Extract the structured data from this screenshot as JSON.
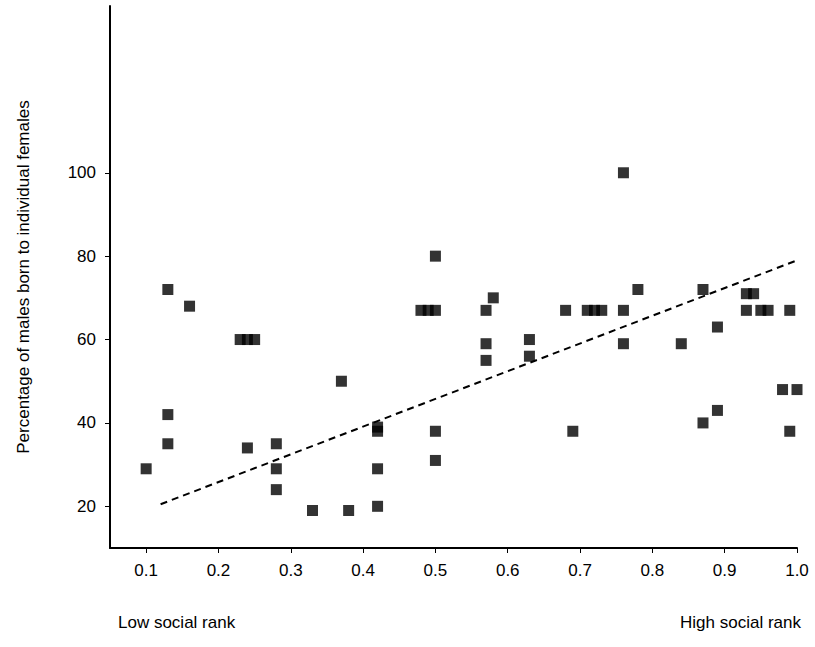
{
  "chart_data": {
    "type": "scatter",
    "y_label": "Percentage of males born to individual females",
    "annotations": [
      "Low social rank",
      "High social rank"
    ],
    "xlim": [
      0.05,
      1.0
    ],
    "xticks": [
      0.1,
      0.2,
      0.3,
      0.4,
      0.5,
      0.6,
      0.7,
      0.8,
      0.9,
      {
        "value": 1.0,
        "label": "1.0"
      }
    ],
    "ylim": [
      10,
      140
    ],
    "yticks": [
      20,
      40,
      60,
      80,
      100
    ],
    "grid": false,
    "series": [
      {
        "type": "scatter",
        "color": "#000000",
        "marker": "square",
        "x": [
          0.1,
          0.13,
          0.13,
          0.13,
          0.16,
          0.23,
          0.24,
          0.25,
          0.24,
          0.28,
          0.28,
          0.28,
          0.33,
          0.37,
          0.38,
          0.42,
          0.42,
          0.42,
          0.42,
          0.48,
          0.49,
          0.5,
          0.5,
          0.5,
          0.5,
          0.57,
          0.58,
          0.57,
          0.57,
          0.63,
          0.63,
          0.68,
          0.69,
          0.71,
          0.72,
          0.73,
          0.76,
          0.76,
          0.76,
          0.78,
          0.84,
          0.87,
          0.89,
          0.89,
          0.87,
          0.93,
          0.94,
          0.93,
          0.95,
          0.96,
          0.99,
          0.98,
          1.0,
          0.99
        ],
        "values": [
          29,
          72,
          42,
          35,
          68,
          60,
          60,
          60,
          34,
          35,
          29,
          24,
          19,
          50,
          19,
          39,
          38,
          29,
          20,
          67,
          67,
          67,
          80,
          38,
          31,
          67,
          70,
          59,
          55,
          60,
          56,
          67,
          38,
          67,
          67,
          67,
          67,
          100,
          59,
          72,
          59,
          72,
          63,
          43,
          40,
          71,
          71,
          67,
          67,
          67,
          67,
          48,
          48,
          38
        ]
      },
      {
        "type": "line",
        "color": "#000000",
        "line_style": "dashed",
        "x": [
          0.12,
          1.0
        ],
        "values": [
          20.5,
          79
        ]
      }
    ]
  }
}
